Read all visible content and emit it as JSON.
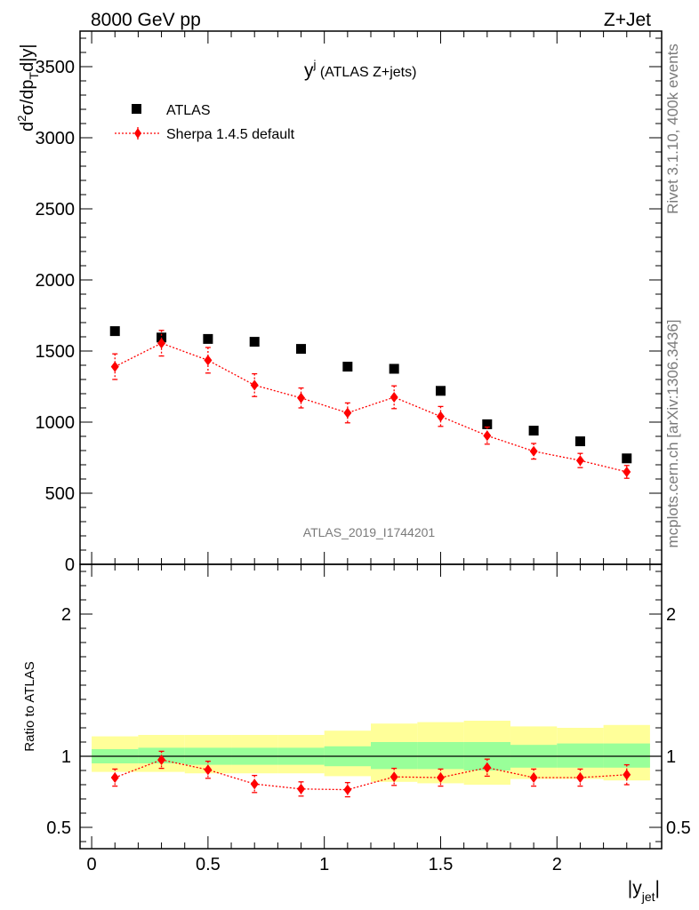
{
  "header": {
    "left": "8000 GeV pp",
    "right": "Z+Jet"
  },
  "side_labels": {
    "rivet": "Rivet 3.1.10,  400k events",
    "mcplots": "mcplots.cern.ch [arXiv:1306.3436]"
  },
  "watermark": "ATLAS_2019_I1744201",
  "legend": {
    "data_label": "ATLAS",
    "mc_label": "Sherpa 1.4.5 default"
  },
  "chart_data": [
    {
      "type": "scatter",
      "panel": "main",
      "title_main": "y",
      "title_sup": "j",
      "title_rest": " (ATLAS Z+jets)",
      "ylabel_parts": [
        "d",
        "2",
        "σ/dp",
        "T",
        "d",
        "|y|"
      ],
      "ylim": [
        0,
        3750
      ],
      "yticks": [
        0,
        500,
        1000,
        1500,
        2000,
        2500,
        3000,
        3500
      ],
      "yticklabels": [
        "0",
        "500",
        "1000",
        "1500",
        "2000",
        "2500",
        "3000",
        "3500"
      ],
      "xlim": [
        -0.05,
        2.45
      ],
      "x": [
        0.1,
        0.3,
        0.5,
        0.7,
        0.9,
        1.1,
        1.3,
        1.5,
        1.7,
        1.9,
        2.1,
        2.3
      ],
      "series": [
        {
          "name": "ATLAS",
          "color": "#000000",
          "marker": "square",
          "values": [
            1640,
            1595,
            1585,
            1565,
            1515,
            1390,
            1375,
            1220,
            985,
            940,
            865,
            745
          ]
        },
        {
          "name": "Sherpa 1.4.5 default",
          "color": "#ff0000",
          "marker": "diamond",
          "line": "dotted",
          "values": [
            1390,
            1555,
            1435,
            1260,
            1170,
            1065,
            1175,
            1040,
            905,
            795,
            730,
            650
          ],
          "err": [
            90,
            90,
            90,
            80,
            70,
            70,
            80,
            70,
            60,
            55,
            50,
            45
          ]
        }
      ]
    },
    {
      "type": "scatter",
      "panel": "ratio",
      "ylabel": "Ratio to ATLAS",
      "xlabel_main": "|y",
      "xlabel_sub": "jet",
      "xlabel_end": "|",
      "ylim": [
        0.35,
        2.35
      ],
      "yticks": [
        0.5,
        1,
        2
      ],
      "yticklabels": [
        "0.5",
        "1",
        "2"
      ],
      "xticks": [
        0,
        0.5,
        1,
        1.5,
        2
      ],
      "xticklabels": [
        "0",
        "0.5",
        "1",
        "1.5",
        "2"
      ],
      "bands": [
        {
          "x0": 0.0,
          "x1": 0.2,
          "inner": [
            0.95,
            1.05
          ],
          "outer": [
            0.89,
            1.14
          ]
        },
        {
          "x0": 0.2,
          "x1": 0.4,
          "inner": [
            0.95,
            1.06
          ],
          "outer": [
            0.89,
            1.15
          ]
        },
        {
          "x0": 0.4,
          "x1": 0.6,
          "inner": [
            0.94,
            1.06
          ],
          "outer": [
            0.88,
            1.15
          ]
        },
        {
          "x0": 0.6,
          "x1": 0.8,
          "inner": [
            0.94,
            1.06
          ],
          "outer": [
            0.88,
            1.15
          ]
        },
        {
          "x0": 0.8,
          "x1": 1.0,
          "inner": [
            0.94,
            1.06
          ],
          "outer": [
            0.88,
            1.15
          ]
        },
        {
          "x0": 1.0,
          "x1": 1.2,
          "inner": [
            0.93,
            1.07
          ],
          "outer": [
            0.86,
            1.18
          ]
        },
        {
          "x0": 1.2,
          "x1": 1.4,
          "inner": [
            0.91,
            1.1
          ],
          "outer": [
            0.82,
            1.23
          ]
        },
        {
          "x0": 1.4,
          "x1": 1.6,
          "inner": [
            0.91,
            1.1
          ],
          "outer": [
            0.81,
            1.24
          ]
        },
        {
          "x0": 1.6,
          "x1": 1.8,
          "inner": [
            0.9,
            1.1
          ],
          "outer": [
            0.8,
            1.25
          ]
        },
        {
          "x0": 1.8,
          "x1": 2.0,
          "inner": [
            0.92,
            1.08
          ],
          "outer": [
            0.84,
            1.21
          ]
        },
        {
          "x0": 2.0,
          "x1": 2.2,
          "inner": [
            0.92,
            1.09
          ],
          "outer": [
            0.84,
            1.2
          ]
        },
        {
          "x0": 2.2,
          "x1": 2.4,
          "inner": [
            0.92,
            1.09
          ],
          "outer": [
            0.83,
            1.22
          ]
        }
      ],
      "x": [
        0.1,
        0.3,
        0.5,
        0.7,
        0.9,
        1.1,
        1.3,
        1.5,
        1.7,
        1.9,
        2.1,
        2.3
      ],
      "series": [
        {
          "name": "Sherpa 1.4.5 default",
          "color": "#ff0000",
          "values": [
            0.85,
            0.975,
            0.905,
            0.805,
            0.77,
            0.765,
            0.855,
            0.85,
            0.92,
            0.85,
            0.85,
            0.87
          ],
          "err": [
            0.06,
            0.06,
            0.06,
            0.06,
            0.05,
            0.05,
            0.06,
            0.06,
            0.06,
            0.06,
            0.06,
            0.07
          ]
        }
      ],
      "colors": {
        "inner_band": "#99ff99",
        "outer_band": "#ffff99",
        "line": "#000000"
      }
    }
  ]
}
